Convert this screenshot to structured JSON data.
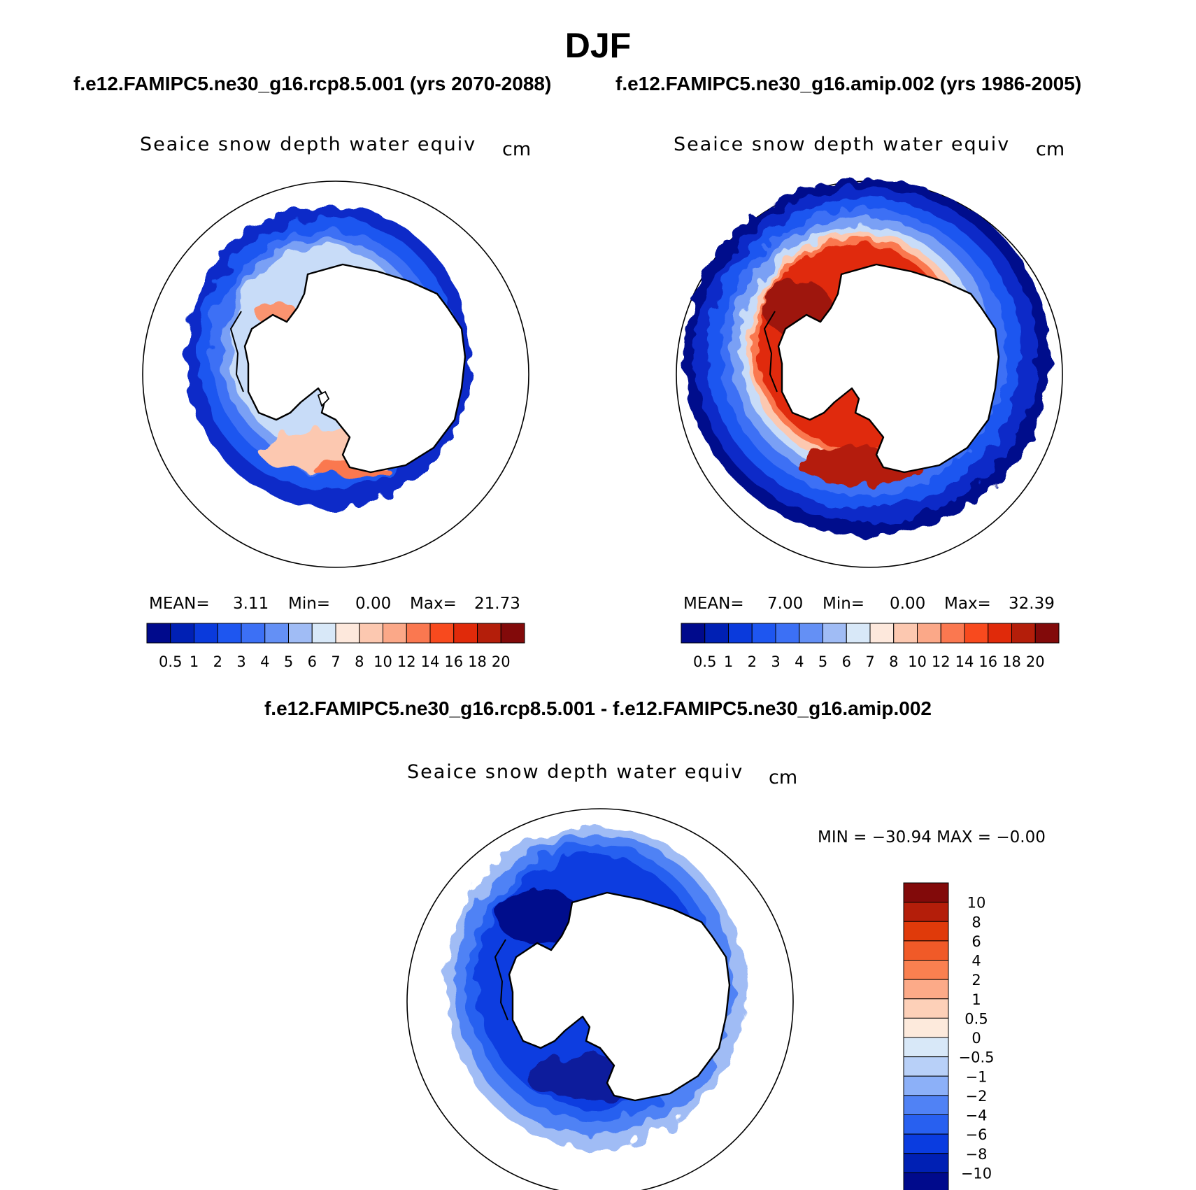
{
  "figure": {
    "title": "DJF",
    "subtitles": [
      "f.e12.FAMIPC5.ne30_g16.rcp8.5.001 (yrs 2070-2088)",
      "f.e12.FAMIPC5.ne30_g16.amip.002 (yrs 1986-2005)"
    ],
    "diff_title": "f.e12.FAMIPC5.ne30_g16.rcp8.5.001 - f.e12.FAMIPC5.ne30_g16.amip.002"
  },
  "panels": {
    "left": {
      "variable": "Seaice snow depth water equiv",
      "units": "cm",
      "stats": {
        "mean_label": "MEAN=",
        "mean": "3.11",
        "min_label": "Min=",
        "min": "0.00",
        "max_label": "Max=",
        "max": "21.73"
      }
    },
    "right": {
      "variable": "Seaice snow depth water equiv",
      "units": "cm",
      "stats": {
        "mean_label": "MEAN=",
        "mean": "7.00",
        "min_label": "Min=",
        "min": "0.00",
        "max_label": "Max=",
        "max": "32.39"
      }
    },
    "diff": {
      "variable": "Seaice snow depth water equiv",
      "units": "cm",
      "stats_text": "MIN = −30.94 MAX =  −0.00"
    }
  },
  "colorbars": {
    "absolute": {
      "colors": [
        "#000a8c",
        "#0020b4",
        "#0a3adc",
        "#1e56f0",
        "#3c70f5",
        "#6490f5",
        "#a0bcf5",
        "#d8e8f8",
        "#fde8dc",
        "#fcc8b0",
        "#fba888",
        "#fa7850",
        "#f84a1e",
        "#e02a0a",
        "#b41e0a",
        "#820a0a"
      ],
      "labels": [
        "0.5",
        "1",
        "2",
        "3",
        "4",
        "5",
        "6",
        "7",
        "8",
        "10",
        "12",
        "14",
        "16",
        "18",
        "20"
      ]
    },
    "difference": {
      "colors": [
        "#820a0a",
        "#b41e0a",
        "#e03a0a",
        "#f05a28",
        "#fa8050",
        "#fcaa88",
        "#fdd0b8",
        "#fdeadc",
        "#d8e8f8",
        "#b8d0f8",
        "#8cb0f8",
        "#5082f5",
        "#2860f0",
        "#0a3ce0",
        "#0020b4",
        "#000a8c"
      ],
      "labels": [
        "10",
        "8",
        "6",
        "4",
        "2",
        "1",
        "0.5",
        "0",
        "−0.5",
        "−1",
        "−2",
        "−4",
        "−6",
        "−8",
        "−10"
      ]
    }
  }
}
